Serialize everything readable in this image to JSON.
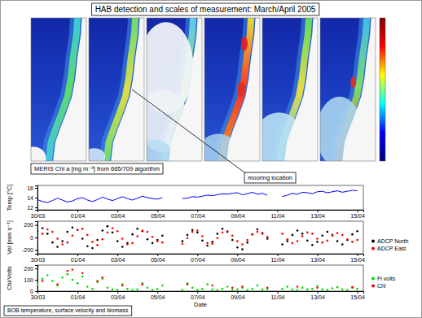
{
  "figure_title": "HAB detection and scales of measurement: March/April 2005",
  "map_caption": "MERIS Chl a [mg m⁻³] from 665/709 algorithm",
  "map_annotation": "mooring location",
  "series_caption": "BOB temperature, surface velocity and biomass",
  "chart_data": [
    {
      "type": "line",
      "y_label": "Temp [°C]",
      "x": [
        0,
        0.25,
        0.5,
        0.75,
        1,
        1.25,
        1.5,
        1.75,
        2,
        2.25,
        2.5,
        2.75,
        3,
        3.25,
        3.5,
        3.75,
        4,
        4.25,
        4.5,
        4.75,
        5,
        5.25,
        5.5,
        5.75,
        6,
        6.25,
        6.5,
        6.75,
        7,
        7.25,
        7.5,
        7.75,
        8,
        8.25,
        8.5,
        8.75,
        9,
        9.25,
        9.5,
        9.75,
        10,
        10.25,
        10.5,
        10.75,
        11,
        11.25,
        11.5,
        11.75,
        12,
        12.25,
        12.5,
        12.75,
        13,
        13.25,
        13.5,
        13.75,
        14,
        14.25,
        14.5,
        14.75,
        15,
        15.25,
        15.5,
        15.75,
        16
      ],
      "xlim": [
        0,
        16.3
      ],
      "xticks": [
        {
          "value": 0,
          "label": "30/03"
        },
        {
          "value": 2,
          "label": "01/04"
        },
        {
          "value": 4,
          "label": "03/04"
        },
        {
          "value": 6,
          "label": "05/04"
        },
        {
          "value": 8,
          "label": "07/04"
        },
        {
          "value": 10,
          "label": "09/04"
        },
        {
          "value": 12,
          "label": "11/04"
        },
        {
          "value": 14,
          "label": "13/04"
        },
        {
          "value": 16,
          "label": "15/04"
        }
      ],
      "ylim": [
        11.5,
        16.5
      ],
      "yticks": [
        12,
        14,
        16
      ],
      "series": [
        {
          "color": "#0000ff",
          "line_style": "solid",
          "values": [
            13.6,
            13.2,
            13.0,
            13.4,
            13.9,
            13.5,
            13.1,
            13.3,
            13.8,
            14.0,
            13.5,
            13.2,
            13.6,
            14.1,
            13.7,
            13.4,
            13.8,
            14.2,
            13.8,
            13.5,
            13.9,
            14.3,
            14.0,
            13.8,
            13.7,
            14.0,
            null,
            null,
            null,
            13.8,
            13.9,
            14.2,
            14.1,
            14.3,
            14.5,
            14.4,
            14.6,
            14.8,
            14.7,
            14.9,
            15.0,
            14.6,
            14.8,
            15.1,
            14.7,
            14.9,
            14.5,
            null,
            null,
            14.2,
            14.5,
            14.9,
            14.7,
            15.1,
            15.0,
            14.8,
            15.2,
            15.3,
            15.0,
            15.2,
            15.4,
            15.1,
            15.3,
            15.5,
            15.4
          ]
        }
      ]
    },
    {
      "type": "scatter",
      "y_label": "Vel [mm s⁻¹]",
      "legend": "right",
      "x": [
        0,
        0.25,
        0.5,
        0.75,
        1,
        1.25,
        1.5,
        1.75,
        2,
        2.25,
        2.5,
        2.75,
        3,
        3.25,
        3.5,
        3.75,
        4,
        4.25,
        4.5,
        4.75,
        5,
        5.25,
        5.5,
        5.75,
        6,
        6.25,
        6.5,
        6.75,
        7,
        7.25,
        7.5,
        7.75,
        8,
        8.25,
        8.5,
        8.75,
        9,
        9.25,
        9.5,
        9.75,
        10,
        10.25,
        10.5,
        10.75,
        11,
        11.25,
        11.5,
        11.75,
        12,
        12.25,
        12.5,
        12.75,
        13,
        13.25,
        13.5,
        13.75,
        14,
        14.25,
        14.5,
        14.75,
        15,
        15.25,
        15.5,
        15.75,
        16
      ],
      "xlim": [
        0,
        16.3
      ],
      "xticks": [
        {
          "value": 0,
          "label": "30/03"
        },
        {
          "value": 2,
          "label": "01/04"
        },
        {
          "value": 4,
          "label": "03/04"
        },
        {
          "value": 6,
          "label": "05/04"
        },
        {
          "value": 8,
          "label": "07/04"
        },
        {
          "value": 10,
          "label": "09/04"
        },
        {
          "value": 12,
          "label": "11/04"
        },
        {
          "value": 14,
          "label": "13/04"
        },
        {
          "value": 16,
          "label": "15/04"
        }
      ],
      "ylim": [
        -260,
        260
      ],
      "yticks": [
        -200,
        0,
        200
      ],
      "series": [
        {
          "name": "ADCP North",
          "color": "#000000",
          "marker": "dot",
          "values": [
            100,
            150,
            60,
            -80,
            -150,
            -60,
            90,
            160,
            120,
            -20,
            -140,
            -170,
            -40,
            110,
            180,
            80,
            -60,
            -150,
            -90,
            50,
            140,
            100,
            -30,
            -90,
            -40,
            30,
            null,
            null,
            null,
            -60,
            40,
            120,
            80,
            -50,
            -130,
            -70,
            60,
            140,
            90,
            -40,
            -160,
            -190,
            -80,
            50,
            130,
            70,
            -20,
            null,
            null,
            -110,
            -60,
            40,
            110,
            60,
            -50,
            -120,
            -70,
            30,
            90,
            40,
            -60,
            -110,
            -40,
            50,
            100
          ]
        },
        {
          "name": "ADCP East",
          "color": "#ff0000",
          "marker": "dot",
          "values": [
            -40,
            60,
            130,
            90,
            -20,
            -110,
            -80,
            30,
            120,
            140,
            40,
            -70,
            -120,
            -30,
            80,
            150,
            100,
            -20,
            -110,
            -90,
            20,
            110,
            90,
            10,
            -60,
            -80,
            null,
            null,
            null,
            -100,
            -10,
            90,
            110,
            20,
            -90,
            -100,
            -10,
            80,
            100,
            30,
            -60,
            -110,
            -40,
            50,
            90,
            60,
            10,
            null,
            null,
            60,
            -30,
            -90,
            -60,
            20,
            80,
            60,
            -20,
            -80,
            -50,
            30,
            70,
            40,
            -30,
            -70,
            -40
          ]
        }
      ]
    },
    {
      "type": "scatter",
      "y_label": "Chl/Volts",
      "x_label": "Date",
      "legend": "right",
      "x": [
        0,
        0.25,
        0.5,
        0.75,
        1,
        1.25,
        1.5,
        1.75,
        2,
        2.25,
        2.5,
        2.75,
        3,
        3.25,
        3.5,
        3.75,
        4,
        4.25,
        4.5,
        4.75,
        5,
        5.25,
        5.5,
        5.75,
        6,
        6.25,
        6.5,
        6.75,
        7,
        7.25,
        7.5,
        7.75,
        8,
        8.25,
        8.5,
        8.75,
        9,
        9.25,
        9.5,
        9.75,
        10,
        10.25,
        10.5,
        10.75,
        11,
        11.25,
        11.5,
        11.75,
        12,
        12.25,
        12.5,
        12.75,
        13,
        13.25,
        13.5,
        13.75,
        14,
        14.25,
        14.5,
        14.75,
        15,
        15.25,
        15.5,
        15.75,
        16
      ],
      "xlim": [
        0,
        16.3
      ],
      "xticks": [
        {
          "value": 0,
          "label": "30/03"
        },
        {
          "value": 2,
          "label": "01/04"
        },
        {
          "value": 4,
          "label": "03/04"
        },
        {
          "value": 6,
          "label": "05/04"
        },
        {
          "value": 8,
          "label": "07/04"
        },
        {
          "value": 10,
          "label": "09/04"
        },
        {
          "value": 12,
          "label": "11/04"
        },
        {
          "value": 14,
          "label": "13/04"
        },
        {
          "value": 16,
          "label": "15/04"
        }
      ],
      "ylim": [
        0,
        230
      ],
      "yticks": [
        0,
        100,
        200
      ],
      "series": [
        {
          "name": "Fl volts",
          "color": "#00dd00",
          "marker": "dot",
          "values": [
            60,
            110,
            140,
            90,
            50,
            120,
            150,
            100,
            70,
            130,
            40,
            20,
            80,
            110,
            30,
            15,
            10,
            60,
            20,
            10,
            15,
            70,
            30,
            10,
            20,
            50,
            null,
            null,
            null,
            10,
            70,
            30,
            10,
            20,
            60,
            15,
            10,
            20,
            40,
            10,
            15,
            30,
            10,
            20,
            50,
            15,
            20,
            null,
            null,
            20,
            40,
            15,
            10,
            30,
            15,
            20,
            45,
            15,
            10,
            25,
            35,
            15,
            10,
            30,
            20
          ]
        },
        {
          "name": "Chl",
          "color": "#ff0000",
          "marker": "dot",
          "values": [
            null,
            90,
            null,
            null,
            60,
            null,
            180,
            190,
            null,
            160,
            null,
            null,
            90,
            120,
            null,
            null,
            null,
            50,
            null,
            null,
            null,
            60,
            null,
            null,
            null,
            null,
            null,
            null,
            null,
            null,
            60,
            null,
            null,
            null,
            null,
            50,
            null,
            null,
            null,
            30,
            null,
            40,
            null,
            null,
            null,
            null,
            30,
            null,
            null,
            null,
            null,
            null,
            40,
            null,
            null,
            null,
            30,
            null,
            null,
            null,
            null,
            null,
            null,
            35,
            null
          ]
        }
      ]
    }
  ]
}
